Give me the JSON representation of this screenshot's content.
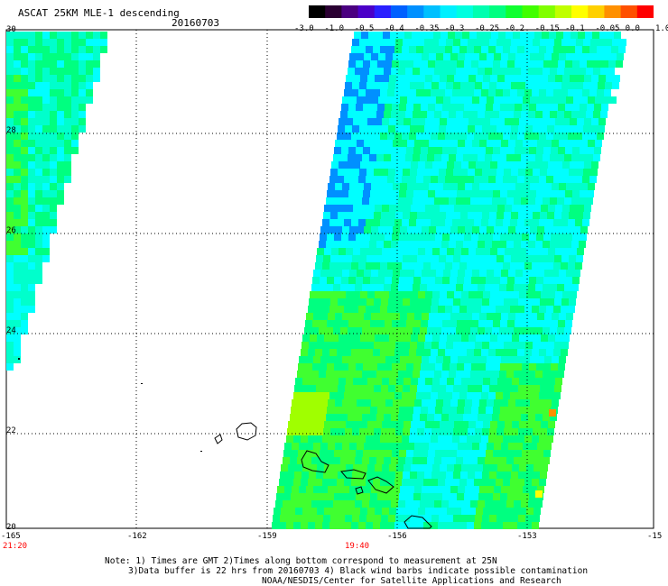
{
  "header": {
    "title": "ASCAT 25KM MLE-1 descending",
    "date": "20160703"
  },
  "colorbar": {
    "colors": [
      "#000000",
      "#2a0032",
      "#4a0080",
      "#4b00c8",
      "#2a20ff",
      "#0060ff",
      "#0090ff",
      "#00c0ff",
      "#00f0ff",
      "#00ffe0",
      "#00ffb0",
      "#00ff80",
      "#10ff30",
      "#40ff00",
      "#80ff00",
      "#c0ff00",
      "#ffff00",
      "#ffd000",
      "#ff9000",
      "#ff5000",
      "#ff0000"
    ],
    "labels": [
      "-3.0",
      "-1.0",
      "-0.5",
      "-0.4",
      "-0.35",
      "-0.3",
      "-0.25",
      "-0.2",
      "-0.15",
      "-0.1",
      "-0.05",
      "0.0",
      "1.0"
    ]
  },
  "axes": {
    "x_ticks": [
      "-165",
      "-162",
      "-159",
      "-156",
      "-153",
      "-15"
    ],
    "y_ticks": [
      "30",
      "28",
      "26",
      "24",
      "22",
      "20"
    ]
  },
  "times": {
    "left": "21:20",
    "center": "19:40"
  },
  "notes": [
    "Note: 1) Times are GMT 2)Times along bottom correspond to measurement at 25N",
    "3)Data buffer is 22 hrs from 20160703 4) Black wind barbs indicate possible contamination",
    "NOAA/NESDIS/Center for Satellite Applications and Research"
  ],
  "palette": {
    "cyan": "#00ffff",
    "aqua": "#00ffcc",
    "green": "#00ff80",
    "lime": "#40ff30",
    "blue": "#0090ff",
    "yellow_green": "#a0ff00",
    "orange": "#ff9000"
  }
}
